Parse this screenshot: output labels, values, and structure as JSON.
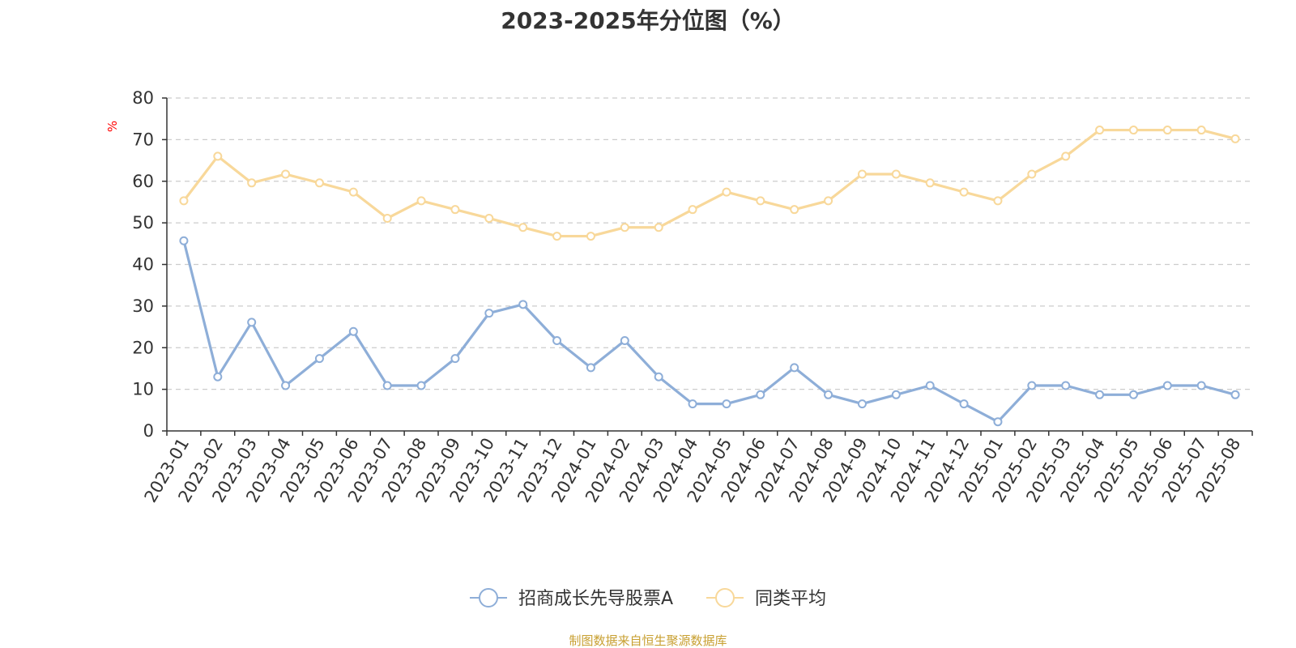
{
  "colors": {
    "series_1": "#8eaed8",
    "series_2": "#f8d89a",
    "grid": "#cccccc",
    "axis": "#333333",
    "unit_label": "#ff0000",
    "source": "#c8a032"
  },
  "source_note": "制图数据来自恒生聚源数据库",
  "chart_data": {
    "type": "line",
    "title": "2023-2025年分位图（%）",
    "ylabel": "%",
    "xlabel": "",
    "ylim": [
      0,
      80
    ],
    "yticks": [
      0,
      10,
      20,
      30,
      40,
      50,
      60,
      70,
      80
    ],
    "grid": true,
    "legend_position": "bottom-center",
    "categories": [
      "2023-01",
      "2023-02",
      "2023-03",
      "2023-04",
      "2023-05",
      "2023-06",
      "2023-07",
      "2023-08",
      "2023-09",
      "2023-10",
      "2023-11",
      "2023-12",
      "2024-01",
      "2024-02",
      "2024-03",
      "2024-04",
      "2024-05",
      "2024-06",
      "2024-07",
      "2024-08",
      "2024-09",
      "2024-10",
      "2024-11",
      "2024-12",
      "2025-01",
      "2025-02",
      "2025-03",
      "2025-04",
      "2025-05",
      "2025-06",
      "2025-07",
      "2025-08"
    ],
    "series": [
      {
        "name": "招商成长先导股票A",
        "values": [
          45.7,
          13.0,
          26.1,
          10.9,
          17.4,
          23.9,
          10.9,
          10.9,
          17.4,
          28.3,
          30.4,
          21.7,
          15.2,
          21.7,
          13.0,
          6.5,
          6.5,
          8.7,
          15.2,
          8.7,
          6.5,
          8.7,
          10.9,
          6.5,
          2.2,
          10.9,
          10.9,
          8.7,
          8.7,
          10.9,
          10.9,
          8.7
        ]
      },
      {
        "name": "同类平均",
        "values": [
          55.3,
          66.0,
          59.6,
          61.7,
          59.6,
          57.4,
          51.1,
          55.3,
          53.2,
          51.1,
          48.9,
          46.8,
          46.8,
          48.9,
          48.9,
          53.2,
          57.4,
          55.3,
          53.2,
          55.3,
          61.7,
          61.7,
          59.6,
          57.4,
          55.3,
          61.7,
          66.0,
          72.3,
          72.3,
          72.3,
          72.3,
          70.2
        ]
      }
    ]
  }
}
